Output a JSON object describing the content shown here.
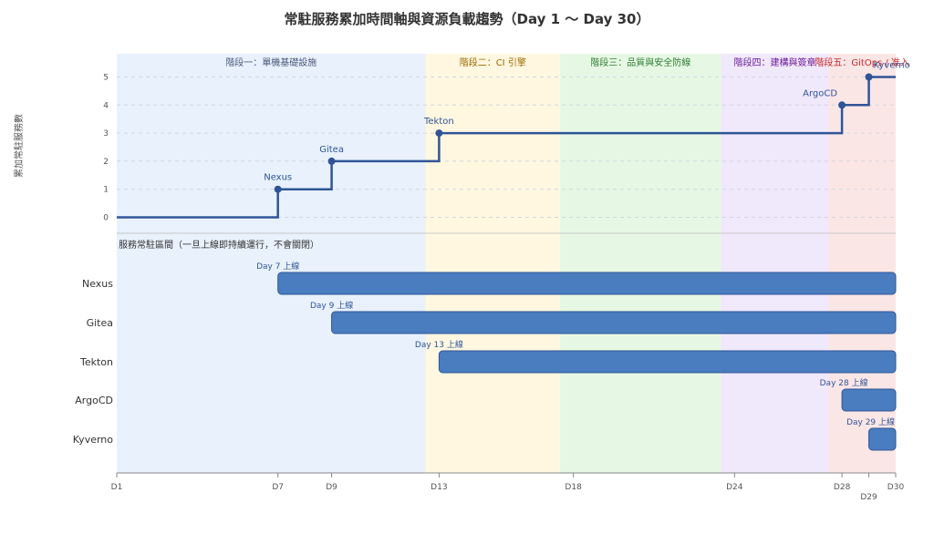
{
  "title": "常駐服務累加時間軸與資源負載趨勢（Day 1 ～ Day 30）",
  "ylabel": "累加常駐服務數",
  "lower_title": "服務常駐區間（一旦上線即持續運行，不會關閉）",
  "phases": [
    {
      "label": "階段一：單機基礎設施",
      "start": 1,
      "end": 12.5,
      "color": "#e8f1fc",
      "text_color": "#4a5a7a"
    },
    {
      "label": "階段二：CI 引擎",
      "start": 12.5,
      "end": 17.5,
      "color": "#fff7e0",
      "text_color": "#9a6a00"
    },
    {
      "label": "階段三：品質與安全防線",
      "start": 17.5,
      "end": 23.5,
      "color": "#e6f8e3",
      "text_color": "#2e7d32"
    },
    {
      "label": "階段四：建構與簽章",
      "start": 23.5,
      "end": 27.5,
      "color": "#f0e8fb",
      "text_color": "#6a1b9a"
    },
    {
      "label": "階段五：GitOps / 准入",
      "start": 27.5,
      "end": 30,
      "color": "#fbe6e6",
      "text_color": "#c62828"
    }
  ],
  "chart_data": [
    {
      "type": "line",
      "step": true,
      "x": [
        1,
        7,
        9,
        13,
        28,
        29,
        30
      ],
      "y": [
        0,
        1,
        2,
        3,
        4,
        5,
        5
      ],
      "point_labels": [
        "",
        "Nexus",
        "Gitea",
        "Tekton",
        "ArgoCD",
        "Kyverno",
        ""
      ],
      "xlim": [
        1,
        30
      ],
      "ylim": [
        0,
        5
      ],
      "yticks": [
        0,
        1,
        2,
        3,
        4,
        5
      ],
      "ylabel": "累加常駐服務數",
      "color": "#2f5597",
      "grid": true
    },
    {
      "type": "bar",
      "orientation": "horizontal",
      "categories": [
        "Nexus",
        "Gitea",
        "Tekton",
        "ArgoCD",
        "Kyverno"
      ],
      "start": [
        7,
        9,
        13,
        28,
        29
      ],
      "end": [
        30,
        30,
        30,
        30,
        30
      ],
      "bar_labels": [
        "Day 7 上線",
        "Day 9 上線",
        "Day 13 上線",
        "Day 28 上線",
        "Day 29 上線"
      ],
      "xticks": [
        1,
        7,
        9,
        13,
        18,
        24,
        28,
        29,
        30
      ],
      "xtick_labels": [
        "D1",
        "D7",
        "D9",
        "D13",
        "D18",
        "D24",
        "D28",
        "D29",
        "D30"
      ],
      "color": "#4a7dbf",
      "border_color": "#2f5597"
    }
  ]
}
